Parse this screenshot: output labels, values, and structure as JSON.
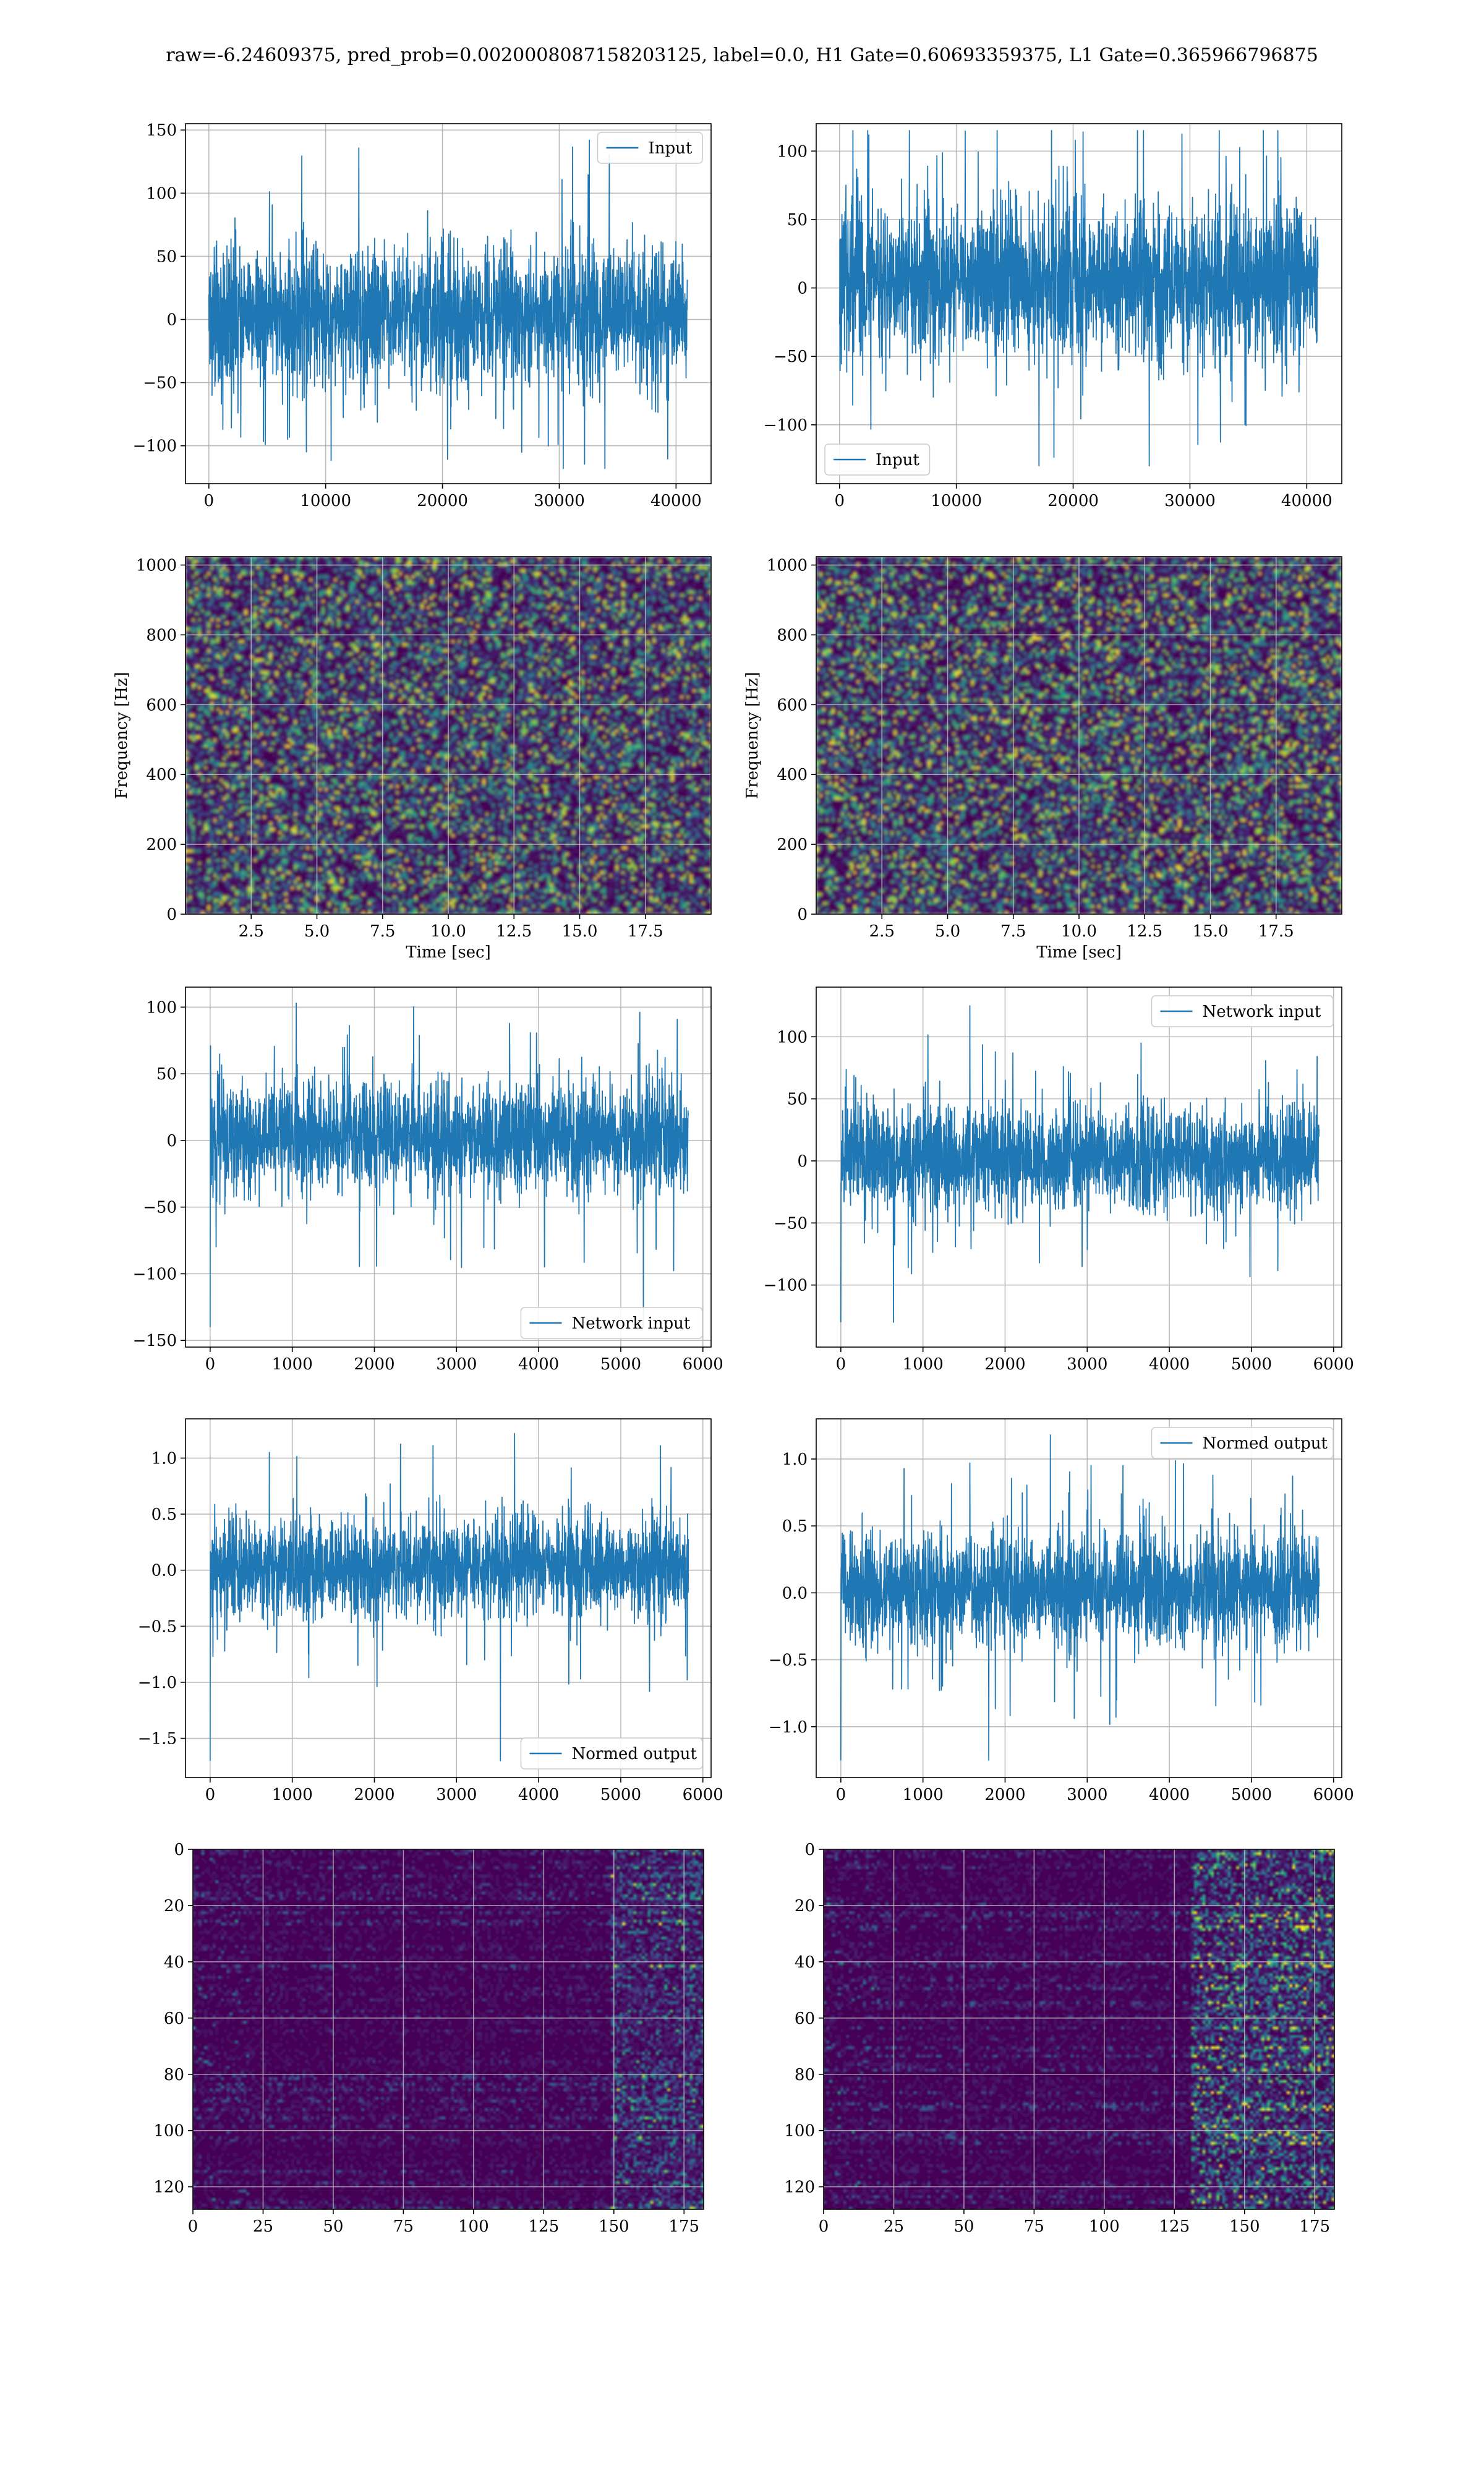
{
  "figure": {
    "suptitle": "raw=-6.24609375, pred_prob=0.0020008087158203125, label=0.0, H1 Gate=0.60693359375, L1 Gate=0.365966796875"
  },
  "colors": {
    "line": "#1f77b4",
    "grid": "#b0b0b0",
    "viridis_dark": "#440154",
    "viridis_mid": "#3b528b",
    "viridis_teal": "#21918c",
    "viridis_green": "#5ec962",
    "viridis_yellow": "#fde725"
  },
  "chart_data": [
    {
      "id": "raw-h1",
      "type": "line",
      "legend": "Input",
      "legend_loc": "upper right",
      "xlim": [
        -2000,
        43000
      ],
      "ylim": [
        -130,
        155
      ],
      "xticks": [
        0,
        10000,
        20000,
        30000,
        40000
      ],
      "yticks": [
        -100,
        -50,
        0,
        50,
        100,
        150
      ],
      "x_range": [
        0,
        40960
      ],
      "band": [
        -55,
        60
      ],
      "extremes": [
        -118,
        142
      ],
      "series": [
        {
          "name": "Input",
          "x_start": 0,
          "x_end": 40960,
          "typical_range": [
            -55,
            60
          ],
          "min": -118,
          "max": 142
        }
      ]
    },
    {
      "id": "raw-l1",
      "type": "line",
      "legend": "Input",
      "legend_loc": "lower left",
      "xlim": [
        -2000,
        43000
      ],
      "ylim": [
        -143,
        120
      ],
      "xticks": [
        0,
        10000,
        20000,
        30000,
        40000
      ],
      "yticks": [
        -100,
        -50,
        0,
        50,
        100
      ],
      "x_range": [
        0,
        40960
      ],
      "band": [
        -55,
        65
      ],
      "extremes": [
        -130,
        115
      ],
      "series": [
        {
          "name": "Input",
          "x_start": 0,
          "x_end": 40960,
          "typical_range": [
            -55,
            65
          ],
          "min": -130,
          "max": 115
        }
      ]
    },
    {
      "id": "spec-h1",
      "type": "heatmap",
      "xlabel": "Time [sec]",
      "ylabel": "Frequency [Hz]",
      "xlim": [
        0,
        20
      ],
      "ylim": [
        0,
        1024
      ],
      "xticks": [
        2.5,
        5.0,
        7.5,
        10.0,
        12.5,
        15.0,
        17.5
      ],
      "yticks": [
        0,
        200,
        400,
        600,
        800,
        1000
      ],
      "colormap": "viridis",
      "content": "noise spectrogram, mostly dark purple with scattered teal/green/yellow speckles"
    },
    {
      "id": "spec-l1",
      "type": "heatmap",
      "xlabel": "Time [sec]",
      "ylabel": "Frequency [Hz]",
      "xlim": [
        0,
        20
      ],
      "ylim": [
        0,
        1024
      ],
      "xticks": [
        2.5,
        5.0,
        7.5,
        10.0,
        12.5,
        15.0,
        17.5
      ],
      "yticks": [
        0,
        200,
        400,
        600,
        800,
        1000
      ],
      "colormap": "viridis",
      "content": "noise spectrogram, mostly dark purple with scattered teal/green/yellow speckles"
    },
    {
      "id": "net-h1",
      "type": "line",
      "legend": "Network input",
      "legend_loc": "lower right",
      "xlim": [
        -300,
        6100
      ],
      "ylim": [
        -155,
        115
      ],
      "xticks": [
        0,
        1000,
        2000,
        3000,
        4000,
        5000,
        6000
      ],
      "yticks": [
        -150,
        -100,
        -50,
        0,
        50,
        100
      ],
      "x_range": [
        0,
        5824
      ],
      "band": [
        -40,
        45
      ],
      "extremes": [
        -140,
        103
      ],
      "series": [
        {
          "name": "Network input",
          "x_start": 0,
          "x_end": 5824,
          "typical_range": [
            -40,
            45
          ],
          "min": -140,
          "max": 103
        }
      ]
    },
    {
      "id": "net-l1",
      "type": "line",
      "legend": "Network input",
      "legend_loc": "upper right",
      "xlim": [
        -300,
        6100
      ],
      "ylim": [
        -150,
        140
      ],
      "xticks": [
        0,
        1000,
        2000,
        3000,
        4000,
        5000,
        6000
      ],
      "yticks": [
        -100,
        -50,
        0,
        50,
        100
      ],
      "x_range": [
        0,
        5824
      ],
      "band": [
        -40,
        45
      ],
      "extremes": [
        -130,
        125
      ],
      "series": [
        {
          "name": "Network input",
          "x_start": 0,
          "x_end": 5824,
          "typical_range": [
            -40,
            45
          ],
          "min": -130,
          "max": 125
        }
      ]
    },
    {
      "id": "norm-h1",
      "type": "line",
      "legend": "Normed output",
      "legend_loc": "lower right",
      "xlim": [
        -300,
        6100
      ],
      "ylim": [
        -1.85,
        1.35
      ],
      "xticks": [
        0,
        1000,
        2000,
        3000,
        4000,
        5000,
        6000
      ],
      "yticks": [
        -1.5,
        -1.0,
        -0.5,
        0.0,
        0.5,
        1.0
      ],
      "x_range": [
        0,
        5824
      ],
      "band": [
        -0.45,
        0.5
      ],
      "extremes": [
        -1.7,
        1.22
      ],
      "series": [
        {
          "name": "Normed output",
          "x_start": 0,
          "x_end": 5824,
          "typical_range": [
            -0.45,
            0.5
          ],
          "min": -1.7,
          "max": 1.22
        }
      ]
    },
    {
      "id": "norm-l1",
      "type": "line",
      "legend": "Normed output",
      "legend_loc": "upper right",
      "xlim": [
        -300,
        6100
      ],
      "ylim": [
        -1.38,
        1.3
      ],
      "xticks": [
        0,
        1000,
        2000,
        3000,
        4000,
        5000,
        6000
      ],
      "yticks": [
        -1.0,
        -0.5,
        0.0,
        0.5,
        1.0
      ],
      "x_range": [
        0,
        5824
      ],
      "band": [
        -0.4,
        0.45
      ],
      "extremes": [
        -1.25,
        1.18
      ],
      "series": [
        {
          "name": "Normed output",
          "x_start": 0,
          "x_end": 5824,
          "typical_range": [
            -0.4,
            0.45
          ],
          "min": -1.25,
          "max": 1.18
        }
      ]
    },
    {
      "id": "feat-h1",
      "type": "heatmap",
      "colormap": "viridis",
      "xlim": [
        0,
        182
      ],
      "ylim": [
        128,
        0
      ],
      "xticks": [
        0,
        25,
        50,
        75,
        100,
        125,
        150,
        175
      ],
      "yticks": [
        0,
        20,
        40,
        60,
        80,
        100,
        120
      ],
      "content": "feature map, dark purple with horizontal streaks, brighter teal/green near x=150-180"
    },
    {
      "id": "feat-l1",
      "type": "heatmap",
      "colormap": "viridis",
      "xlim": [
        0,
        182
      ],
      "ylim": [
        128,
        0
      ],
      "xticks": [
        0,
        25,
        50,
        75,
        100,
        125,
        150,
        175
      ],
      "yticks": [
        0,
        20,
        40,
        60,
        80,
        100,
        120
      ],
      "content": "feature map, dark purple with horizontal streaks, bright green/yellow activity near x=130-180"
    }
  ]
}
